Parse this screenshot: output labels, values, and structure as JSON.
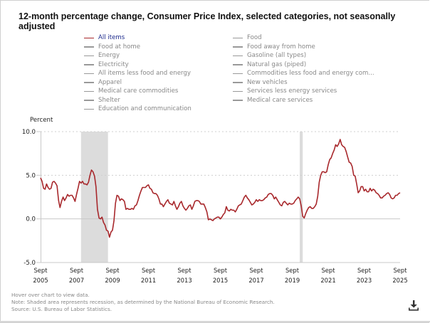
{
  "title": "12-month percentage change, Consumer Price Index, selected categories, not seasonally adjusted",
  "legend": {
    "left": [
      {
        "label": "All items",
        "active": true
      },
      {
        "label": "Food at home",
        "active": false
      },
      {
        "label": "Energy",
        "active": false
      },
      {
        "label": "Electricity",
        "active": false
      },
      {
        "label": "All items less food and energy",
        "active": false
      },
      {
        "label": "Apparel",
        "active": false
      },
      {
        "label": "Medical care commodities",
        "active": false
      },
      {
        "label": "Shelter",
        "active": false
      },
      {
        "label": "Education and communication",
        "active": false
      }
    ],
    "right": [
      {
        "label": "Food",
        "active": false
      },
      {
        "label": "Food away from home",
        "active": false
      },
      {
        "label": "Gasoline (all types)",
        "active": false
      },
      {
        "label": "Natural gas (piped)",
        "active": false
      },
      {
        "label": "Commodities less food and energy com...",
        "active": false
      },
      {
        "label": "New vehicles",
        "active": false
      },
      {
        "label": "Services less energy services",
        "active": false
      },
      {
        "label": "Medical care services",
        "active": false
      }
    ]
  },
  "footer": {
    "hover_note": "Hover over chart to view data.",
    "shade_note": "Note: Shaded area represents recession, as determined by the National Bureau of Economic Research.",
    "source": "Source: U.S. Bureau of Labor Statistics."
  },
  "download_icon": "download-icon",
  "colors": {
    "series": "#a8282c",
    "recession": "#dcdcdc",
    "active_legend_text": "#1c2a8c"
  },
  "chart_data": {
    "type": "line",
    "title": "12-month percentage change, Consumer Price Index, selected categories, not seasonally adjusted",
    "ylabel": "Percent",
    "xlabel": "",
    "ylim": [
      -5.0,
      10.0
    ],
    "yticks": [
      "10.0",
      "5.0",
      "0.0",
      "-5.0"
    ],
    "ytick_values": [
      10,
      5,
      0,
      -5
    ],
    "xlim": [
      2005.667,
      2025.667
    ],
    "xticks": [
      {
        "line1": "Sept",
        "line2": "2005",
        "value": 2005.667
      },
      {
        "line1": "Sept",
        "line2": "2007",
        "value": 2007.667
      },
      {
        "line1": "Sept",
        "line2": "2009",
        "value": 2009.667
      },
      {
        "line1": "Sept",
        "line2": "2011",
        "value": 2011.667
      },
      {
        "line1": "Sept",
        "line2": "2013",
        "value": 2013.667
      },
      {
        "line1": "Sept",
        "line2": "2015",
        "value": 2015.667
      },
      {
        "line1": "Sept",
        "line2": "2017",
        "value": 2017.667
      },
      {
        "line1": "Sept",
        "line2": "2019",
        "value": 2019.667
      },
      {
        "line1": "Sept",
        "line2": "2021",
        "value": 2021.667
      },
      {
        "line1": "Sept",
        "line2": "2023",
        "value": 2023.667
      },
      {
        "line1": "Sept",
        "line2": "2025",
        "value": 2025.667
      }
    ],
    "grid": "horizontal dotted",
    "legend_placement": "top",
    "recessions": [
      {
        "start": 2007.917,
        "end": 2009.417
      },
      {
        "start": 2020.083,
        "end": 2020.25
      }
    ],
    "series": [
      {
        "name": "All items",
        "x": [
          2005.667,
          2005.75,
          2005.833,
          2005.917,
          2006.0,
          2006.083,
          2006.167,
          2006.25,
          2006.333,
          2006.417,
          2006.5,
          2006.583,
          2006.667,
          2006.75,
          2006.833,
          2006.917,
          2007.0,
          2007.083,
          2007.167,
          2007.25,
          2007.333,
          2007.417,
          2007.5,
          2007.583,
          2007.667,
          2007.75,
          2007.833,
          2007.917,
          2008.0,
          2008.083,
          2008.167,
          2008.25,
          2008.333,
          2008.417,
          2008.5,
          2008.583,
          2008.667,
          2008.75,
          2008.833,
          2008.917,
          2009.0,
          2009.083,
          2009.167,
          2009.25,
          2009.333,
          2009.417,
          2009.5,
          2009.583,
          2009.667,
          2009.75,
          2009.833,
          2009.917,
          2010.0,
          2010.083,
          2010.167,
          2010.25,
          2010.333,
          2010.417,
          2010.5,
          2010.583,
          2010.667,
          2010.75,
          2010.833,
          2010.917,
          2011.0,
          2011.083,
          2011.167,
          2011.25,
          2011.333,
          2011.417,
          2011.5,
          2011.583,
          2011.667,
          2011.75,
          2011.833,
          2011.917,
          2012.0,
          2012.083,
          2012.167,
          2012.25,
          2012.333,
          2012.417,
          2012.5,
          2012.583,
          2012.667,
          2012.75,
          2012.833,
          2012.917,
          2013.0,
          2013.083,
          2013.167,
          2013.25,
          2013.333,
          2013.417,
          2013.5,
          2013.583,
          2013.667,
          2013.75,
          2013.833,
          2013.917,
          2014.0,
          2014.083,
          2014.167,
          2014.25,
          2014.333,
          2014.417,
          2014.5,
          2014.583,
          2014.667,
          2014.75,
          2014.833,
          2014.917,
          2015.0,
          2015.083,
          2015.167,
          2015.25,
          2015.333,
          2015.417,
          2015.5,
          2015.583,
          2015.667,
          2015.75,
          2015.833,
          2015.917,
          2016.0,
          2016.083,
          2016.167,
          2016.25,
          2016.333,
          2016.417,
          2016.5,
          2016.583,
          2016.667,
          2016.75,
          2016.833,
          2016.917,
          2017.0,
          2017.083,
          2017.167,
          2017.25,
          2017.333,
          2017.417,
          2017.5,
          2017.583,
          2017.667,
          2017.75,
          2017.833,
          2017.917,
          2018.0,
          2018.083,
          2018.167,
          2018.25,
          2018.333,
          2018.417,
          2018.5,
          2018.583,
          2018.667,
          2018.75,
          2018.833,
          2018.917,
          2019.0,
          2019.083,
          2019.167,
          2019.25,
          2019.333,
          2019.417,
          2019.5,
          2019.583,
          2019.667,
          2019.75,
          2019.833,
          2019.917,
          2020.0,
          2020.083,
          2020.167,
          2020.25,
          2020.333,
          2020.417,
          2020.5,
          2020.583,
          2020.667,
          2020.75,
          2020.833,
          2020.917,
          2021.0,
          2021.083,
          2021.167,
          2021.25,
          2021.333,
          2021.417,
          2021.5,
          2021.583,
          2021.667,
          2021.75,
          2021.833,
          2021.917,
          2022.0,
          2022.083,
          2022.167,
          2022.25,
          2022.333,
          2022.417,
          2022.5,
          2022.583,
          2022.667,
          2022.75,
          2022.833,
          2022.917,
          2023.0,
          2023.083,
          2023.167,
          2023.25,
          2023.333,
          2023.417,
          2023.5,
          2023.583,
          2023.667,
          2023.75,
          2023.833,
          2023.917,
          2024.0,
          2024.083,
          2024.167,
          2024.25,
          2024.333,
          2024.417,
          2024.5,
          2024.583,
          2024.667,
          2024.75,
          2024.833,
          2024.917,
          2025.0,
          2025.083,
          2025.167,
          2025.25,
          2025.333,
          2025.417,
          2025.5,
          2025.583,
          2025.667
        ],
        "values": [
          4.7,
          4.3,
          3.5,
          3.4,
          4.0,
          3.6,
          3.4,
          3.5,
          4.2,
          4.3,
          4.1,
          3.8,
          2.1,
          1.3,
          2.0,
          2.5,
          2.1,
          2.4,
          2.8,
          2.6,
          2.7,
          2.7,
          2.4,
          2.0,
          2.8,
          3.5,
          4.3,
          4.1,
          4.3,
          4.0,
          4.0,
          3.9,
          4.2,
          5.0,
          5.6,
          5.4,
          4.9,
          3.7,
          1.1,
          0.1,
          0.0,
          0.2,
          -0.4,
          -0.7,
          -1.3,
          -1.4,
          -2.1,
          -1.5,
          -1.3,
          -0.2,
          1.8,
          2.7,
          2.6,
          2.1,
          2.3,
          2.2,
          2.0,
          1.1,
          1.2,
          1.1,
          1.1,
          1.2,
          1.1,
          1.5,
          1.6,
          2.1,
          2.7,
          3.2,
          3.6,
          3.6,
          3.6,
          3.8,
          3.9,
          3.5,
          3.4,
          3.0,
          2.9,
          2.9,
          2.7,
          2.3,
          1.7,
          1.7,
          1.4,
          1.7,
          2.0,
          2.2,
          1.8,
          1.7,
          1.6,
          2.0,
          1.5,
          1.1,
          1.4,
          1.8,
          2.0,
          1.5,
          1.2,
          1.0,
          1.2,
          1.5,
          1.6,
          1.1,
          1.5,
          2.0,
          2.1,
          2.1,
          2.0,
          1.7,
          1.7,
          1.7,
          1.3,
          0.8,
          -0.1,
          0.0,
          -0.1,
          -0.2,
          0.0,
          0.1,
          0.2,
          0.2,
          0.0,
          0.2,
          0.5,
          0.7,
          1.4,
          1.0,
          0.9,
          1.1,
          1.0,
          1.0,
          0.8,
          1.1,
          1.5,
          1.6,
          1.7,
          2.1,
          2.5,
          2.7,
          2.4,
          2.2,
          1.9,
          1.6,
          1.7,
          1.9,
          2.2,
          2.0,
          2.2,
          2.1,
          2.1,
          2.2,
          2.4,
          2.5,
          2.8,
          2.9,
          2.9,
          2.7,
          2.3,
          2.5,
          2.2,
          1.9,
          1.6,
          1.5,
          1.9,
          2.0,
          1.8,
          1.6,
          1.8,
          1.7,
          1.7,
          1.8,
          2.1,
          2.3,
          2.5,
          2.3,
          1.5,
          0.3,
          0.1,
          0.6,
          1.0,
          1.3,
          1.4,
          1.2,
          1.2,
          1.4,
          1.7,
          2.6,
          4.2,
          5.0,
          5.4,
          5.4,
          5.3,
          5.4,
          6.2,
          6.8,
          7.0,
          7.5,
          7.9,
          8.5,
          8.3,
          8.6,
          9.1,
          8.5,
          8.3,
          8.2,
          7.7,
          7.1,
          6.5,
          6.4,
          6.0,
          5.0,
          4.9,
          4.0,
          3.0,
          3.2,
          3.7,
          3.7,
          3.2,
          3.4,
          3.1,
          3.1,
          3.5,
          3.2,
          3.4,
          3.3,
          3.0,
          2.9,
          2.7,
          2.4,
          2.4,
          2.6,
          2.7,
          2.9,
          3.0,
          2.8,
          2.4,
          2.3,
          2.4,
          2.7,
          2.7,
          2.9,
          3.0
        ]
      }
    ]
  }
}
